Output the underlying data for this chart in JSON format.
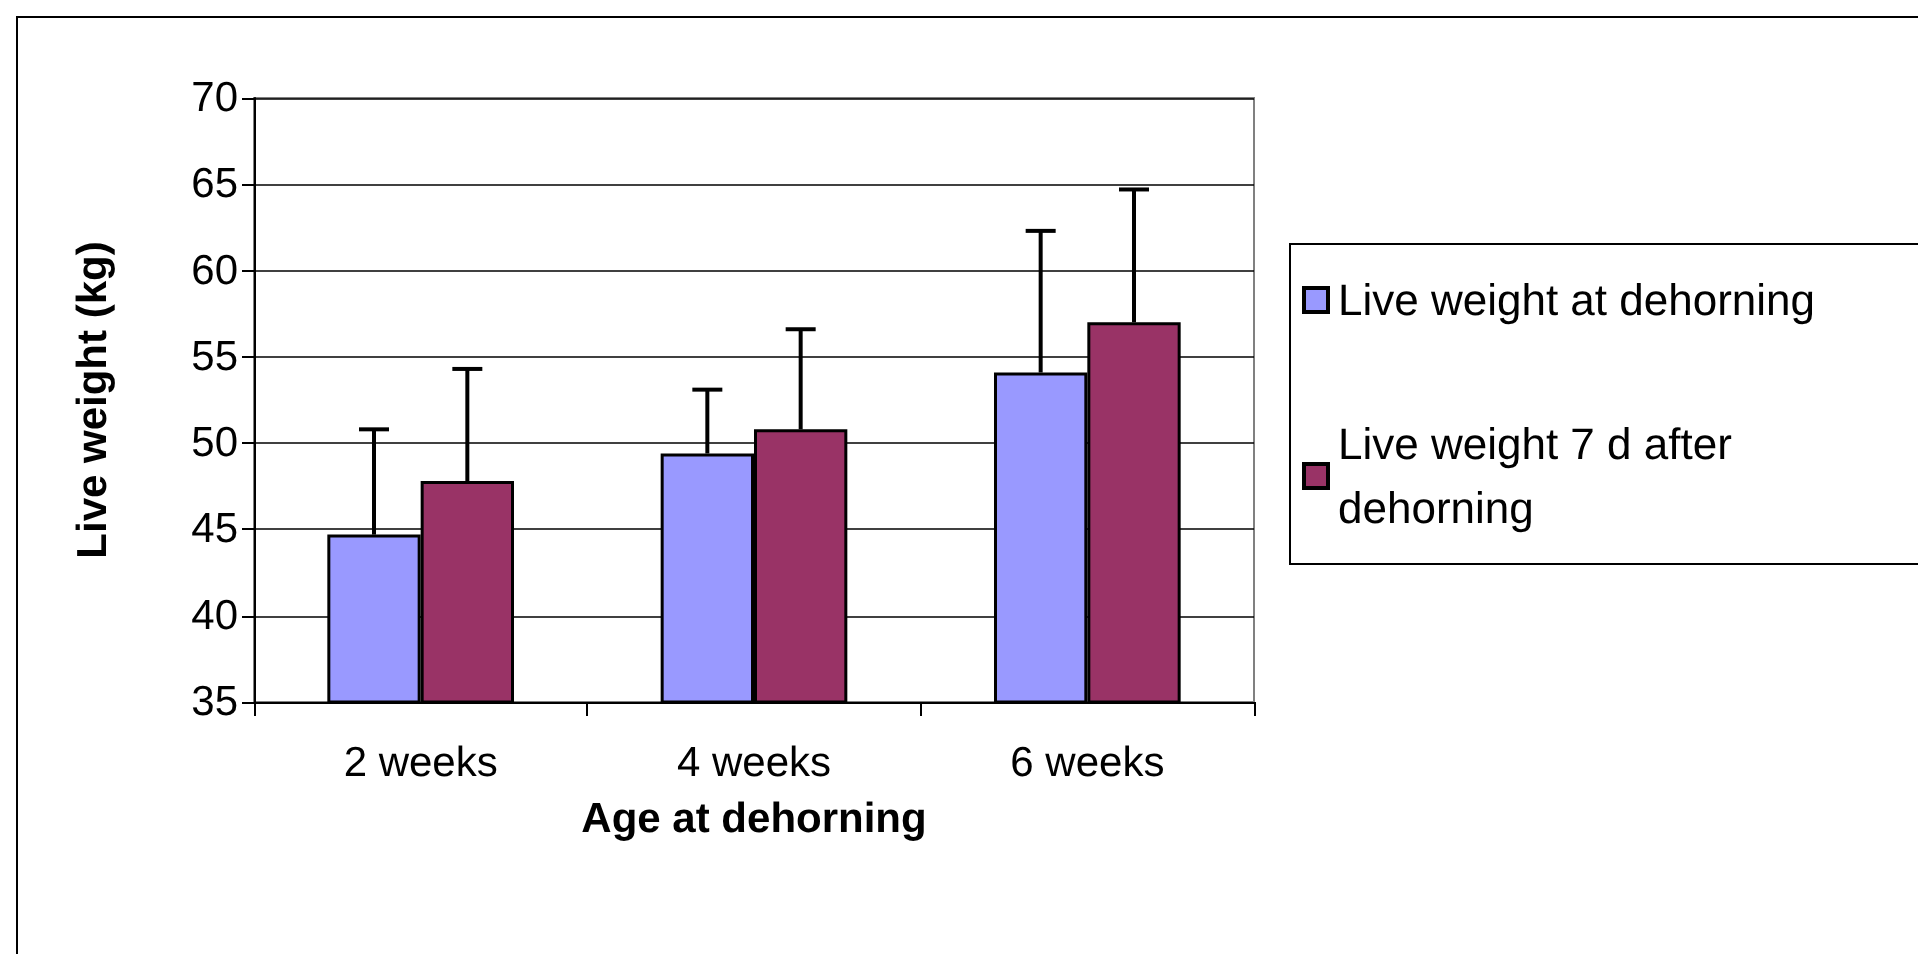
{
  "chart_data": {
    "type": "bar",
    "xlabel": "Age at dehorning",
    "ylabel": "Live weight (kg)",
    "categories": [
      "2 weeks",
      "4 weeks",
      "6 weeks"
    ],
    "series": [
      {
        "name": "Live weight at dehorning",
        "color": "#9999ff",
        "values": [
          44.7,
          49.4,
          54.1
        ],
        "errors": [
          [
            44.7,
            50.8
          ],
          [
            49.4,
            53.1
          ],
          [
            54.1,
            62.3
          ]
        ]
      },
      {
        "name": "Live weight 7 d after dehorning",
        "color": "#993366",
        "values": [
          47.8,
          50.8,
          57.0
        ],
        "errors": [
          [
            47.8,
            54.3
          ],
          [
            50.8,
            56.6
          ],
          [
            57.0,
            64.7
          ]
        ]
      }
    ],
    "ylim": [
      35,
      70
    ],
    "yticks": [
      35,
      40,
      45,
      50,
      55,
      60,
      65,
      70
    ],
    "grid": "y",
    "legend": "right"
  }
}
